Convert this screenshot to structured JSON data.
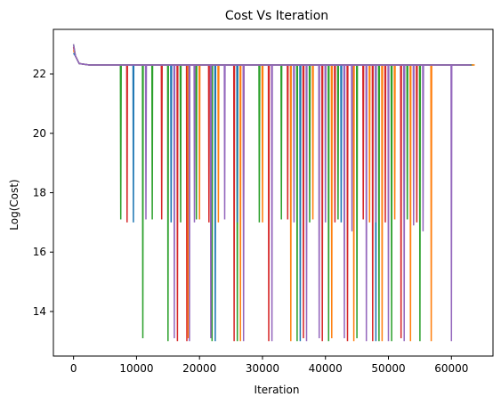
{
  "chart_data": {
    "type": "line",
    "title": "Cost Vs Iteration",
    "xlabel": "Iteration",
    "ylabel": "Log(Cost)",
    "xlim": [
      -3200,
      66600
    ],
    "ylim": [
      12.5,
      23.5
    ],
    "xticks": [
      0,
      10000,
      20000,
      30000,
      40000,
      50000,
      60000
    ],
    "yticks": [
      14,
      16,
      18,
      20,
      22
    ],
    "grid": false,
    "legend": "none",
    "plateau": 22.3,
    "series": [
      {
        "color": "#2ca02c",
        "start": [
          0,
          23.0
        ],
        "end_x": 63500,
        "spikes": [
          [
            7500,
            17.1
          ],
          [
            11000,
            13.1
          ],
          [
            12500,
            17.1
          ],
          [
            15000,
            13.0
          ],
          [
            17000,
            17.0
          ],
          [
            19500,
            17.1
          ],
          [
            22000,
            13.0
          ],
          [
            26000,
            13.0
          ],
          [
            29500,
            17.0
          ],
          [
            33000,
            17.1
          ],
          [
            35500,
            13.0
          ],
          [
            37500,
            17.0
          ],
          [
            40500,
            13.0
          ],
          [
            42000,
            17.1
          ],
          [
            45000,
            13.1
          ],
          [
            48500,
            13.0
          ],
          [
            50500,
            13.0
          ],
          [
            53000,
            17.1
          ],
          [
            55000,
            13.0
          ]
        ]
      },
      {
        "color": "#d62728",
        "start": [
          0,
          22.9
        ],
        "end_x": 63000,
        "spikes": [
          [
            8500,
            17.0
          ],
          [
            14000,
            17.1
          ],
          [
            16500,
            13.0
          ],
          [
            18000,
            13.0
          ],
          [
            21500,
            17.0
          ],
          [
            25500,
            13.0
          ],
          [
            27000,
            17.1
          ],
          [
            31000,
            13.0
          ],
          [
            34000,
            17.1
          ],
          [
            36500,
            13.1
          ],
          [
            39500,
            13.0
          ],
          [
            41500,
            17.0
          ],
          [
            43500,
            13.0
          ],
          [
            46000,
            17.1
          ],
          [
            47500,
            13.0
          ],
          [
            49500,
            17.0
          ],
          [
            52000,
            13.1
          ],
          [
            54500,
            17.0
          ]
        ]
      },
      {
        "color": "#ff7f0e",
        "start": [
          0,
          22.8
        ],
        "end_x": 63700,
        "spikes": [
          [
            18200,
            13.1
          ],
          [
            20000,
            17.1
          ],
          [
            23000,
            17.0
          ],
          [
            26500,
            13.0
          ],
          [
            30000,
            17.0
          ],
          [
            34500,
            13.0
          ],
          [
            38000,
            17.1
          ],
          [
            41000,
            13.1
          ],
          [
            44500,
            13.0
          ],
          [
            47000,
            17.0
          ],
          [
            49000,
            13.0
          ],
          [
            51000,
            17.1
          ],
          [
            53500,
            13.0
          ],
          [
            56800,
            13.0
          ]
        ]
      },
      {
        "color": "#1f77b4",
        "start": [
          0,
          22.7
        ],
        "end_x": 63200,
        "spikes": [
          [
            9500,
            17.0
          ],
          [
            15500,
            17.0
          ],
          [
            22500,
            13.0
          ],
          [
            26000,
            17.0
          ],
          [
            36000,
            13.0
          ],
          [
            42500,
            17.0
          ],
          [
            48000,
            13.0
          ],
          [
            52500,
            17.1
          ]
        ]
      },
      {
        "color": "#9467bd",
        "start": [
          0,
          23.0
        ],
        "end_x": 63000,
        "spikes": [
          [
            11500,
            17.1
          ],
          [
            16000,
            13.1
          ],
          [
            18400,
            13.0
          ],
          [
            19200,
            17.0
          ],
          [
            21800,
            13.1
          ],
          [
            24000,
            17.1
          ],
          [
            27000,
            13.0
          ],
          [
            31500,
            13.0
          ],
          [
            35000,
            17.0
          ],
          [
            37000,
            13.0
          ],
          [
            39000,
            13.1
          ],
          [
            40000,
            17.0
          ],
          [
            43000,
            13.1
          ],
          [
            44200,
            16.7
          ],
          [
            46500,
            13.0
          ],
          [
            48000,
            17.0
          ],
          [
            50000,
            13.0
          ],
          [
            52500,
            13.0
          ],
          [
            54000,
            16.9
          ],
          [
            55500,
            16.7
          ],
          [
            60000,
            13.0
          ]
        ]
      }
    ]
  }
}
